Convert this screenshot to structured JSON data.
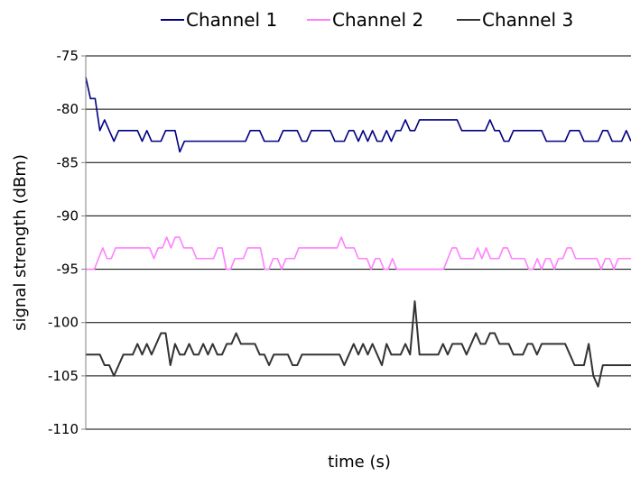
{
  "chart_data": {
    "type": "line",
    "title": "",
    "xlabel": "time (s)",
    "ylabel": "signal strength (dBm)",
    "ylim": [
      -110,
      -75
    ],
    "yticks": [
      -75,
      -80,
      -85,
      -90,
      -95,
      -100,
      -105,
      -110
    ],
    "ytick_labels": [
      "-75",
      "-80",
      "-85",
      "-90",
      "-95",
      "-100",
      "-105",
      "-110"
    ],
    "grid": true,
    "legend_position": "top",
    "x_ticks_shown": false,
    "series": [
      {
        "name": "Channel 1",
        "color": "#000080",
        "values": [
          -77,
          -79,
          -79,
          -82,
          -81,
          -82,
          -83,
          -82,
          -82,
          -82,
          -82,
          -82,
          -83,
          -82,
          -83,
          -83,
          -83,
          -82,
          -82,
          -82,
          -84,
          -83,
          -83,
          -83,
          -83,
          -83,
          -83,
          -83,
          -83,
          -83,
          -83,
          -83,
          -83,
          -83,
          -83,
          -82,
          -82,
          -82,
          -83,
          -83,
          -83,
          -83,
          -82,
          -82,
          -82,
          -82,
          -83,
          -83,
          -82,
          -82,
          -82,
          -82,
          -82,
          -83,
          -83,
          -83,
          -82,
          -82,
          -83,
          -82,
          -83,
          -82,
          -83,
          -83,
          -82,
          -83,
          -82,
          -82,
          -81,
          -82,
          -82,
          -81,
          -81,
          -81,
          -81,
          -81,
          -81,
          -81,
          -81,
          -81,
          -82,
          -82,
          -82,
          -82,
          -82,
          -82,
          -81,
          -82,
          -82,
          -83,
          -83,
          -82,
          -82,
          -82,
          -82,
          -82,
          -82,
          -82,
          -83,
          -83,
          -83,
          -83,
          -83,
          -82,
          -82,
          -82,
          -83,
          -83,
          -83,
          -83,
          -82,
          -82,
          -83,
          -83,
          -83,
          -82,
          -83
        ]
      },
      {
        "name": "Channel 2",
        "color": "#ff80ff",
        "values": [
          -95,
          -95,
          -95,
          -94,
          -93,
          -94,
          -94,
          -93,
          -93,
          -93,
          -93,
          -93,
          -93,
          -93,
          -93,
          -93,
          -94,
          -93,
          -93,
          -92,
          -93,
          -92,
          -92,
          -93,
          -93,
          -93,
          -94,
          -94,
          -94,
          -94,
          -94,
          -93,
          -93,
          -95,
          -95,
          -94,
          -94,
          -94,
          -93,
          -93,
          -93,
          -93,
          -95,
          -95,
          -94,
          -94,
          -95,
          -94,
          -94,
          -94,
          -93,
          -93,
          -93,
          -93,
          -93,
          -93,
          -93,
          -93,
          -93,
          -93,
          -92,
          -93,
          -93,
          -93,
          -94,
          -94,
          -94,
          -95,
          -94,
          -94,
          -95,
          -95,
          -94,
          -95,
          -95,
          -95,
          -95,
          -95,
          -95,
          -95,
          -95,
          -95,
          -95,
          -95,
          -95,
          -94,
          -93,
          -93,
          -94,
          -94,
          -94,
          -94,
          -93,
          -94,
          -93,
          -94,
          -94,
          -94,
          -93,
          -93,
          -94,
          -94,
          -94,
          -94,
          -95,
          -95,
          -94,
          -95,
          -94,
          -94,
          -95,
          -94,
          -94,
          -93,
          -93,
          -94,
          -94,
          -94,
          -94,
          -94,
          -94,
          -95,
          -94,
          -94,
          -95,
          -94,
          -94,
          -94,
          -94
        ]
      },
      {
        "name": "Channel 3",
        "color": "#333333",
        "values": [
          -103,
          -103,
          -103,
          -103,
          -104,
          -104,
          -105,
          -104,
          -103,
          -103,
          -103,
          -102,
          -103,
          -102,
          -103,
          -102,
          -101,
          -101,
          -104,
          -102,
          -103,
          -103,
          -102,
          -103,
          -103,
          -102,
          -103,
          -102,
          -103,
          -103,
          -102,
          -102,
          -101,
          -102,
          -102,
          -102,
          -102,
          -103,
          -103,
          -104,
          -103,
          -103,
          -103,
          -103,
          -104,
          -104,
          -103,
          -103,
          -103,
          -103,
          -103,
          -103,
          -103,
          -103,
          -103,
          -104,
          -103,
          -102,
          -103,
          -102,
          -103,
          -102,
          -103,
          -104,
          -102,
          -103,
          -103,
          -103,
          -102,
          -103,
          -98,
          -103,
          -103,
          -103,
          -103,
          -103,
          -102,
          -103,
          -102,
          -102,
          -102,
          -103,
          -102,
          -101,
          -102,
          -102,
          -101,
          -101,
          -102,
          -102,
          -102,
          -103,
          -103,
          -103,
          -102,
          -102,
          -103,
          -102,
          -102,
          -102,
          -102,
          -102,
          -102,
          -103,
          -104,
          -104,
          -104,
          -102,
          -105,
          -106,
          -104,
          -104,
          -104,
          -104,
          -104,
          -104,
          -104
        ]
      }
    ]
  }
}
